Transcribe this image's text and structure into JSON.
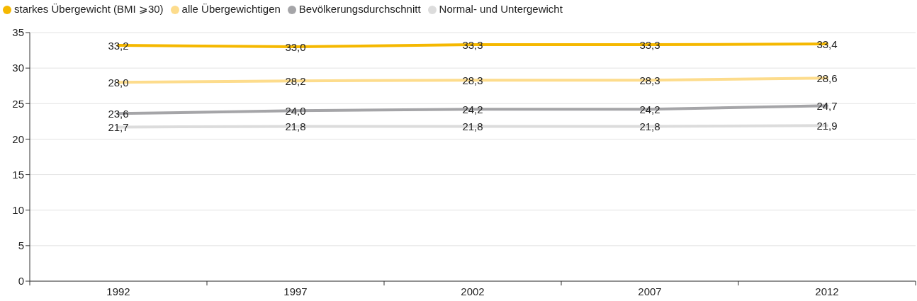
{
  "chart_data": {
    "type": "line",
    "categories": [
      "1992",
      "1997",
      "2002",
      "2007",
      "2012"
    ],
    "series": [
      {
        "name": "starkes Übergewicht (BMI ⩾30)",
        "color": "#f5b800",
        "values": [
          33.2,
          33.0,
          33.3,
          33.3,
          33.4
        ],
        "value_labels": [
          "33,2",
          "33,0",
          "33,3",
          "33,3",
          "33,4"
        ]
      },
      {
        "name": "alle Übergewichtigen",
        "color": "#fddc8c",
        "values": [
          28.0,
          28.2,
          28.3,
          28.3,
          28.6
        ],
        "value_labels": [
          "28,0",
          "28,2",
          "28,3",
          "28,3",
          "28,6"
        ]
      },
      {
        "name": "Bevölkerungsdurchschnitt",
        "color": "#a5a5a8",
        "values": [
          23.6,
          24.0,
          24.2,
          24.2,
          24.7
        ],
        "value_labels": [
          "23,6",
          "24,0",
          "24,2",
          "24,2",
          "24,7"
        ]
      },
      {
        "name": "Normal- und Untergewicht",
        "color": "#dcdcdc",
        "values": [
          21.7,
          21.8,
          21.8,
          21.8,
          21.9
        ],
        "value_labels": [
          "21,7",
          "21,8",
          "21,8",
          "21,8",
          "21,9"
        ]
      }
    ],
    "ylim": [
      0,
      35
    ],
    "yticks": [
      0,
      5,
      10,
      15,
      20,
      25,
      30,
      35
    ],
    "grid": "y",
    "legend": "top left",
    "marker": "none",
    "line_style": "solid"
  }
}
